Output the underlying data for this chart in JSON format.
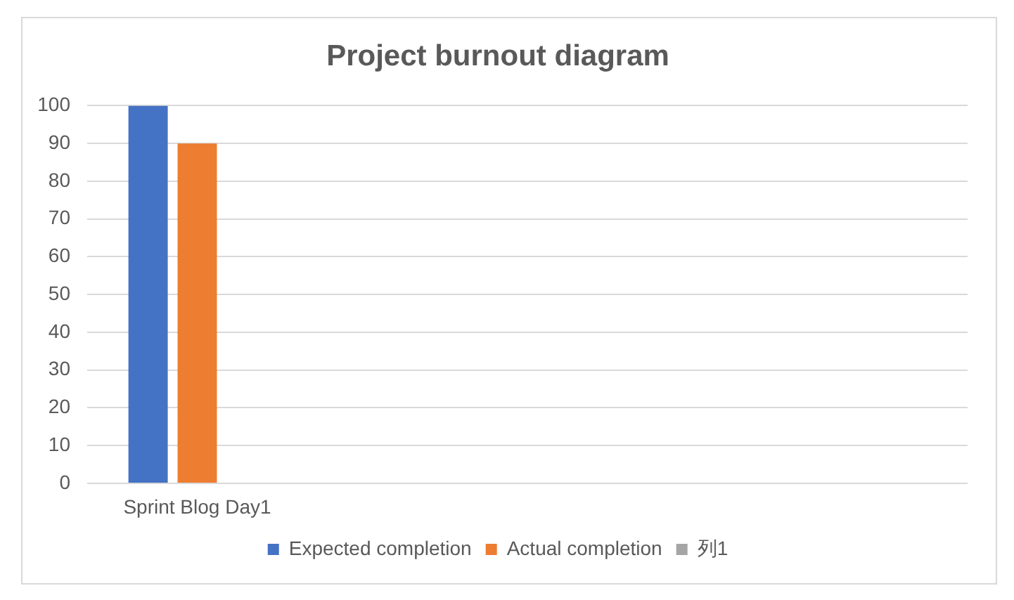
{
  "chart_data": {
    "type": "bar",
    "title": "Project burnout diagram",
    "categories": [
      "Sprint Blog Day1",
      null,
      null,
      null
    ],
    "series": [
      {
        "name": "Expected completion",
        "color": "#4472c4",
        "values": [
          100,
          null,
          null,
          null
        ]
      },
      {
        "name": "Actual completion",
        "color": "#ed7d31",
        "values": [
          90,
          null,
          null,
          null
        ]
      },
      {
        "name": "列1",
        "color": "#a5a5a5",
        "values": [
          null,
          null,
          null,
          null
        ]
      }
    ],
    "ylim": [
      0,
      100
    ],
    "yticks": [
      0,
      10,
      20,
      30,
      40,
      50,
      60,
      70,
      80,
      90,
      100
    ],
    "grid": "y",
    "legend": "bottom"
  }
}
